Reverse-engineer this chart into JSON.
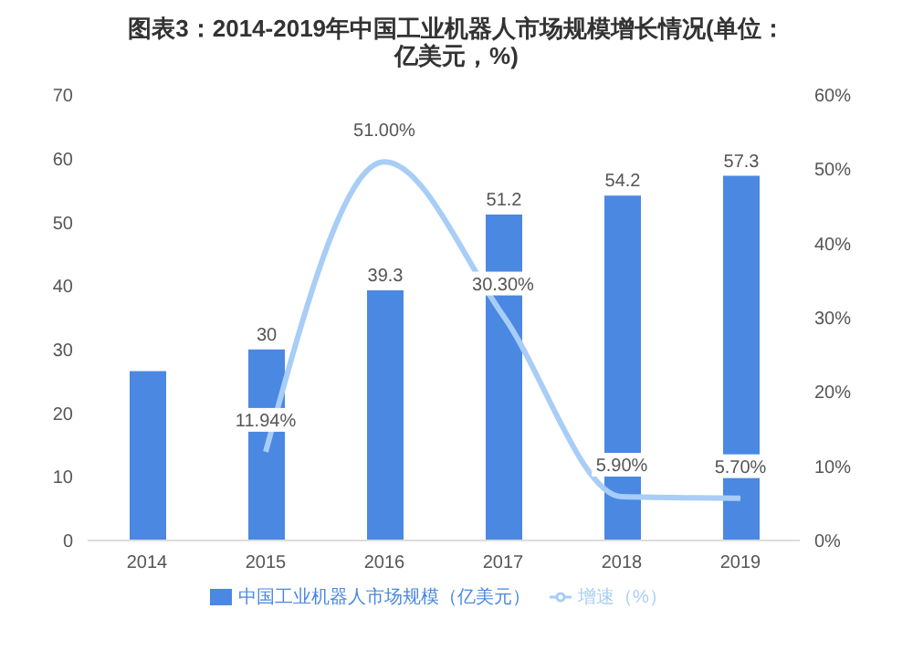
{
  "chart_data": {
    "type": "bar",
    "title": "图表3：2014-2019年中国工业机器人市场规模增长情况(单位：亿美元，%)",
    "categories": [
      "2014",
      "2015",
      "2016",
      "2017",
      "2018",
      "2019"
    ],
    "series": [
      {
        "name": "中国工业机器人市场规模（亿美元）",
        "color": "#4a88e2",
        "values": [
          26.6,
          30,
          39.3,
          51.2,
          54.2,
          57.3
        ],
        "value_labels": [
          null,
          "30",
          "39.3",
          "51.2",
          "54.2",
          "57.3"
        ]
      },
      {
        "name": "增速（%）",
        "type": "line",
        "axis": "y2",
        "color": "#a8cdf6",
        "values": [
          null,
          11.94,
          51.0,
          30.3,
          5.9,
          5.7
        ],
        "value_labels": [
          null,
          "11.94%",
          "51.00%",
          "30.30%",
          "5.90%",
          "5.70%"
        ]
      }
    ],
    "ylim": [
      0,
      70
    ],
    "yticks": [
      0,
      10,
      20,
      30,
      40,
      50,
      60,
      70
    ],
    "y2lim": [
      0,
      60
    ],
    "y2ticks": [
      {
        "value": 0,
        "label": "0%"
      },
      {
        "value": 10,
        "label": "10%"
      },
      {
        "value": 20,
        "label": "20%"
      },
      {
        "value": 30,
        "label": "30%"
      },
      {
        "value": 40,
        "label": "40%"
      },
      {
        "value": 50,
        "label": "50%"
      },
      {
        "value": 60,
        "label": "60%"
      }
    ],
    "grid": false,
    "legend": "bottom",
    "marker": "none",
    "line_style": "solid"
  }
}
